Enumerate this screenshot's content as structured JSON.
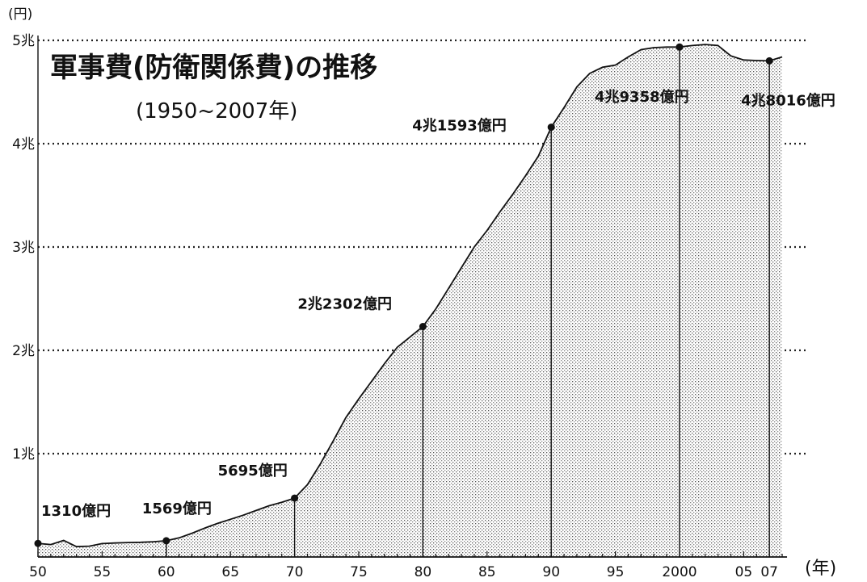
{
  "chart_data": {
    "type": "area",
    "title": "軍事費(防衛関係費)の推移",
    "subtitle": "(1950~2007年)",
    "y_unit": "(円)",
    "x_unit": "(年)",
    "x_tick_labels": [
      "50",
      "55",
      "60",
      "65",
      "70",
      "75",
      "80",
      "85",
      "90",
      "95",
      "2000",
      "05",
      "07"
    ],
    "x_ticks": [
      1950,
      1955,
      1960,
      1965,
      1970,
      1975,
      1980,
      1985,
      1990,
      1995,
      2000,
      2005,
      2007
    ],
    "y_tick_labels": [
      "1兆",
      "2兆",
      "3兆",
      "4兆",
      "5兆"
    ],
    "y_ticks": [
      10000,
      20000,
      30000,
      40000,
      50000
    ],
    "ylim": [
      0,
      50000
    ],
    "xlim": [
      1950,
      2009
    ],
    "grid": true,
    "value_unit": "億円",
    "series": [
      {
        "x": [
          1950,
          1951,
          1952,
          1953,
          1954,
          1955,
          1956,
          1957,
          1958,
          1959,
          1960,
          1961,
          1962,
          1963,
          1964,
          1965,
          1966,
          1967,
          1968,
          1969,
          1970,
          1971,
          1972,
          1973,
          1974,
          1975,
          1976,
          1977,
          1978,
          1979,
          1980,
          1981,
          1982,
          1983,
          1984,
          1985,
          1986,
          1987,
          1988,
          1989,
          1990,
          1991,
          1992,
          1993,
          1994,
          1995,
          1996,
          1997,
          1998,
          1999,
          2000,
          2001,
          2002,
          2003,
          2004,
          2005,
          2006,
          2007,
          2008
        ],
        "values": [
          1310,
          1200,
          1600,
          1000,
          1050,
          1300,
          1350,
          1400,
          1420,
          1480,
          1569,
          1850,
          2300,
          2800,
          3250,
          3650,
          4050,
          4500,
          4950,
          5300,
          5695,
          7000,
          9000,
          11200,
          13500,
          15300,
          17000,
          18700,
          20300,
          21300,
          22302,
          24000,
          26000,
          28000,
          30000,
          31600,
          33400,
          35100,
          36900,
          38800,
          41593,
          43500,
          45500,
          46800,
          47400,
          47600,
          48400,
          49100,
          49300,
          49350,
          49358,
          49500,
          49600,
          49500,
          48500,
          48100,
          48050,
          48016,
          48400
        ]
      }
    ],
    "annotations": [
      {
        "x": 1950,
        "value": 1310,
        "label": "1310億円"
      },
      {
        "x": 1960,
        "value": 1569,
        "label": "1569億円"
      },
      {
        "x": 1970,
        "value": 5695,
        "label": "5695億円"
      },
      {
        "x": 1980,
        "value": 22302,
        "label": "2兆2302億円"
      },
      {
        "x": 1990,
        "value": 41593,
        "label": "4兆1593億円"
      },
      {
        "x": 2000,
        "value": 49358,
        "label": "4兆9358億円"
      },
      {
        "x": 2007,
        "value": 48016,
        "label": "4兆8016億円"
      }
    ]
  }
}
